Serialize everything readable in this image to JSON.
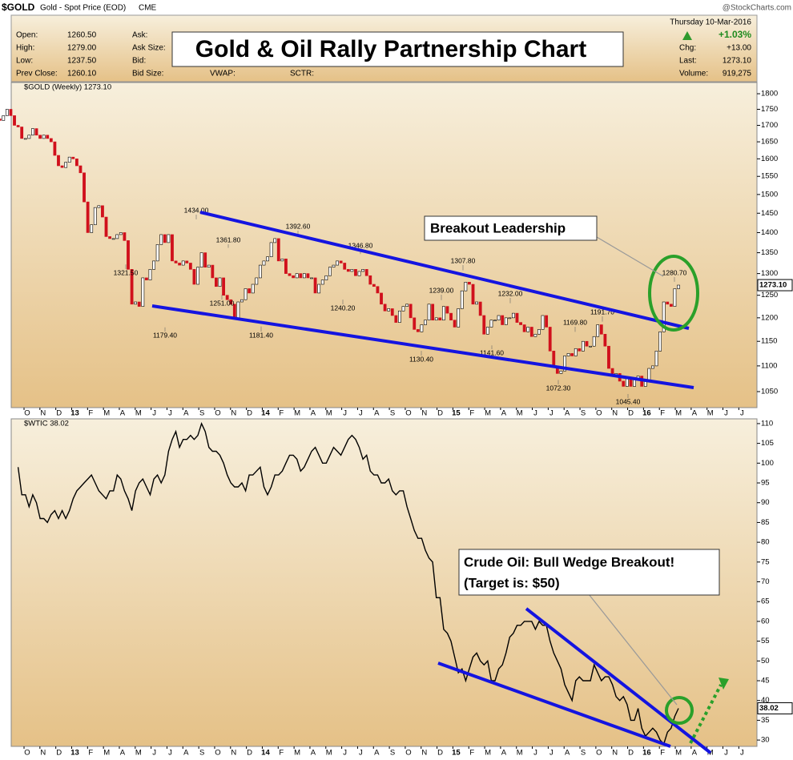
{
  "header": {
    "symbol": "$GOLD",
    "description": "Gold - Spot Price (EOD)",
    "exchange": "CME",
    "watermark": "@StockCharts.com",
    "date": "Thursday  10-Mar-2016",
    "pct_change": "+1.03%",
    "left_fields": [
      {
        "label": "Open:",
        "value": "1260.50"
      },
      {
        "label": "High:",
        "value": "1279.00"
      },
      {
        "label": "Low:",
        "value": "1237.50"
      },
      {
        "label": "Prev Close:",
        "value": "1260.10"
      }
    ],
    "middle_fields": [
      "Ask:",
      "Ask Size:",
      "Bid:",
      "Bid Size:"
    ],
    "bottom_fields": [
      "VWAP:",
      "SCTR:"
    ],
    "right_fields": [
      {
        "label": "Chg:",
        "value": "+13.00"
      },
      {
        "label": "Last:",
        "value": "1273.10"
      },
      {
        "label": "Volume:",
        "value": "919,275"
      }
    ]
  },
  "title": "Gold & Oil Rally Partnership Chart",
  "chart_data": [
    {
      "type": "candlestick",
      "name": "$GOLD (Weekly) 1273.10",
      "log_scale": true,
      "up_color": "#ffffff",
      "down_color": "#d0101c",
      "month_labels": [
        "O",
        "N",
        "D",
        "13",
        "F",
        "M",
        "A",
        "M",
        "J",
        "J",
        "A",
        "S",
        "O",
        "N",
        "D",
        "14",
        "F",
        "M",
        "A",
        "M",
        "J",
        "J",
        "A",
        "S",
        "O",
        "N",
        "D",
        "15",
        "F",
        "M",
        "A",
        "M",
        "J",
        "J",
        "A",
        "S",
        "O",
        "N",
        "D",
        "16",
        "F",
        "M",
        "A",
        "M",
        "J",
        "J"
      ],
      "values": [
        1770,
        1775,
        1780,
        1775,
        1760,
        1720,
        1715,
        1730,
        1750,
        1730,
        1700,
        1695,
        1660,
        1660,
        1670,
        1690,
        1670,
        1660,
        1670,
        1660,
        1650,
        1610,
        1580,
        1575,
        1590,
        1605,
        1600,
        1580,
        1560,
        1480,
        1400,
        1420,
        1465,
        1470,
        1440,
        1390,
        1385,
        1385,
        1395,
        1400,
        1380,
        1310,
        1230,
        1235,
        1225,
        1290,
        1285,
        1310,
        1330,
        1370,
        1395,
        1375,
        1395,
        1330,
        1325,
        1320,
        1330,
        1325,
        1310,
        1275,
        1315,
        1350,
        1315,
        1320,
        1290,
        1270,
        1290,
        1250,
        1240,
        1230,
        1200,
        1235,
        1240,
        1265,
        1255,
        1275,
        1290,
        1320,
        1330,
        1340,
        1375,
        1385,
        1330,
        1335,
        1300,
        1295,
        1290,
        1300,
        1290,
        1300,
        1290,
        1290,
        1255,
        1275,
        1285,
        1295,
        1315,
        1320,
        1330,
        1325,
        1310,
        1305,
        1310,
        1295,
        1305,
        1310,
        1295,
        1275,
        1270,
        1255,
        1230,
        1215,
        1220,
        1205,
        1190,
        1215,
        1225,
        1230,
        1200,
        1175,
        1170,
        1185,
        1195,
        1230,
        1195,
        1200,
        1195,
        1225,
        1210,
        1195,
        1180,
        1220,
        1260,
        1280,
        1275,
        1230,
        1235,
        1205,
        1165,
        1180,
        1195,
        1195,
        1205,
        1185,
        1200,
        1200,
        1210,
        1190,
        1185,
        1170,
        1180,
        1160,
        1165,
        1175,
        1205,
        1180,
        1130,
        1100,
        1085,
        1090,
        1120,
        1125,
        1120,
        1135,
        1130,
        1150,
        1140,
        1140,
        1160,
        1185,
        1165,
        1140,
        1095,
        1080,
        1085,
        1070,
        1060,
        1075,
        1060,
        1075,
        1080,
        1060,
        1070,
        1095,
        1100,
        1130,
        1170,
        1235,
        1230,
        1225,
        1265,
        1273.1
      ],
      "annotations": [
        {
          "value": 1434,
          "label": "1434.00"
        },
        {
          "value": 1392.6,
          "label": "1392.60"
        },
        {
          "value": 1361.8,
          "label": "1361.80"
        },
        {
          "value": 1346.8,
          "label": "1346.80"
        },
        {
          "value": 1321.5,
          "label": "1321.50"
        },
        {
          "value": 1307.8,
          "label": "1307.80"
        },
        {
          "value": 1280.7,
          "label": "1280.70"
        },
        {
          "value": 1251,
          "label": "1251.00"
        },
        {
          "value": 1239,
          "label": "1239.00"
        },
        {
          "value": 1240.2,
          "label": "1240.20"
        },
        {
          "value": 1232,
          "label": "1232.00"
        },
        {
          "value": 1191.7,
          "label": "1191.70"
        },
        {
          "value": 1179.4,
          "label": "1179.40"
        },
        {
          "value": 1181.4,
          "label": "1181.40"
        },
        {
          "value": 1169.8,
          "label": "1169.80"
        },
        {
          "value": 1141.6,
          "label": "1141.60"
        },
        {
          "value": 1130.4,
          "label": "1130.40"
        },
        {
          "value": 1072.3,
          "label": "1072.30"
        },
        {
          "value": 1045.4,
          "label": "1045.40"
        }
      ],
      "last_price": {
        "value": 1273.1,
        "label": "1273.10"
      },
      "callout": "Breakout Leadership",
      "ylim": [
        1020,
        1837
      ],
      "yticks": [
        1050,
        1100,
        1150,
        1200,
        1250,
        1300,
        1350,
        1400,
        1450,
        1500,
        1550,
        1600,
        1650,
        1700,
        1750,
        1800
      ]
    },
    {
      "type": "line",
      "name": "$WTIC 38.02",
      "color": "#000000",
      "month_labels": [
        "O",
        "N",
        "D",
        "13",
        "F",
        "M",
        "A",
        "M",
        "J",
        "J",
        "A",
        "S",
        "O",
        "N",
        "D",
        "14",
        "F",
        "M",
        "A",
        "M",
        "J",
        "J",
        "A",
        "S",
        "O",
        "N",
        "D",
        "15",
        "F",
        "M",
        "A",
        "M",
        "J",
        "J",
        "A",
        "S",
        "O",
        "N",
        "D",
        "16",
        "F",
        "M",
        "A",
        "M",
        "J",
        "J"
      ],
      "values": [
        99,
        92,
        92,
        89,
        92,
        90,
        86,
        86,
        85,
        87,
        88,
        86,
        88,
        86,
        88,
        91,
        93,
        94,
        95,
        96,
        97,
        95,
        93,
        92,
        91,
        93,
        93,
        97,
        96,
        93,
        91,
        88,
        93,
        95,
        96,
        94,
        92,
        96,
        97,
        95,
        97,
        103,
        106,
        108,
        104,
        106,
        106,
        107,
        106,
        107,
        110,
        108,
        104,
        103,
        103,
        102,
        100,
        97,
        95,
        94,
        94,
        95,
        93,
        97,
        97,
        98,
        99,
        94,
        92,
        94,
        97,
        97,
        98,
        100,
        102,
        102,
        101,
        98,
        99,
        101,
        103,
        104,
        102,
        100,
        100,
        102,
        104,
        103,
        102,
        104,
        106,
        107,
        106,
        104,
        101,
        102,
        98,
        97,
        97,
        95,
        95,
        96,
        93,
        92,
        93,
        93,
        89,
        86,
        83,
        81,
        81,
        78,
        76,
        75,
        66,
        66,
        58,
        57,
        55,
        51,
        47,
        48,
        45,
        48,
        51,
        52,
        50,
        49,
        50,
        45,
        45,
        48,
        49,
        52,
        56,
        57,
        59,
        59,
        60,
        60,
        60,
        58,
        60,
        59,
        59,
        55,
        52,
        50,
        48,
        44,
        42,
        40,
        45,
        46,
        45,
        45,
        45,
        49,
        47,
        45,
        46,
        46,
        44,
        41,
        40,
        41,
        39,
        35,
        35,
        38,
        33,
        31,
        32,
        33,
        32,
        30,
        29,
        32,
        33,
        36,
        38.02
      ],
      "last_price": {
        "value": 38.02,
        "label": "38.02"
      },
      "callout": [
        "Crude Oil:  Bull Wedge Breakout!",
        "(Target is:  $50)"
      ],
      "ylim": [
        28.4,
        111.2
      ],
      "yticks": [
        30,
        35,
        40,
        45,
        50,
        55,
        60,
        65,
        70,
        75,
        80,
        85,
        90,
        95,
        100,
        105,
        110
      ]
    }
  ]
}
